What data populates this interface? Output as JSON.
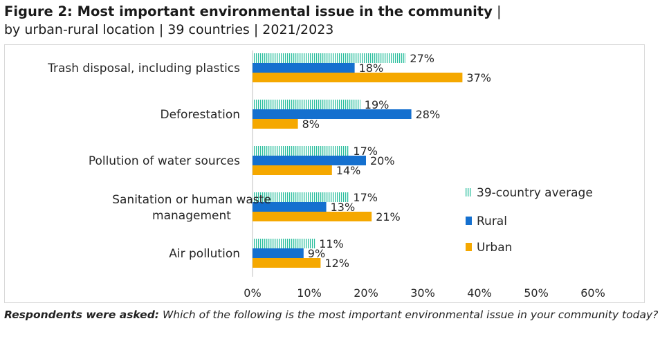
{
  "title": {
    "bold": "Figure 2: Most important environmental issue in the community",
    "separator": "|",
    "subtitle": "by urban-rural location | 39 countries | 2021/2023"
  },
  "footnote": {
    "lead": "Respondents were asked:",
    "text": "Which of the following is the most important environmental issue in your community today?"
  },
  "colors": {
    "average": "#2bbf9e",
    "rural": "#1570cf",
    "urban": "#f5a800"
  },
  "chart_data": {
    "type": "bar",
    "orientation": "horizontal",
    "title": "Figure 2: Most important environmental issue in the community",
    "xlabel": "",
    "ylabel": "",
    "xlim": [
      0,
      60
    ],
    "xticks": [
      0,
      10,
      20,
      30,
      40,
      50,
      60
    ],
    "tick_labels": [
      "0%",
      "10%",
      "20%",
      "30%",
      "40%",
      "50%",
      "60%"
    ],
    "legend_position": "right",
    "categories": [
      "Trash disposal, including plastics",
      "Deforestation",
      "Pollution of water sources",
      "Sanitation or human waste management",
      "Air pollution"
    ],
    "category_lines": [
      [
        "Trash disposal, including plastics"
      ],
      [
        "Deforestation"
      ],
      [
        "Pollution of water sources"
      ],
      [
        "Sanitation or human waste",
        "management"
      ],
      [
        "Air pollution"
      ]
    ],
    "series": [
      {
        "name": "39-country average",
        "pattern": "vertical-stripes",
        "values": [
          27,
          19,
          17,
          17,
          11
        ],
        "labels": [
          "27%",
          "19%",
          "17%",
          "17%",
          "11%"
        ]
      },
      {
        "name": "Rural",
        "pattern": "solid",
        "values": [
          18,
          28,
          20,
          13,
          9
        ],
        "labels": [
          "18%",
          "28%",
          "20%",
          "13%",
          "9%"
        ]
      },
      {
        "name": "Urban",
        "pattern": "solid",
        "values": [
          37,
          8,
          14,
          21,
          12
        ],
        "labels": [
          "37%",
          "8%",
          "14%",
          "21%",
          "12%"
        ]
      }
    ]
  }
}
